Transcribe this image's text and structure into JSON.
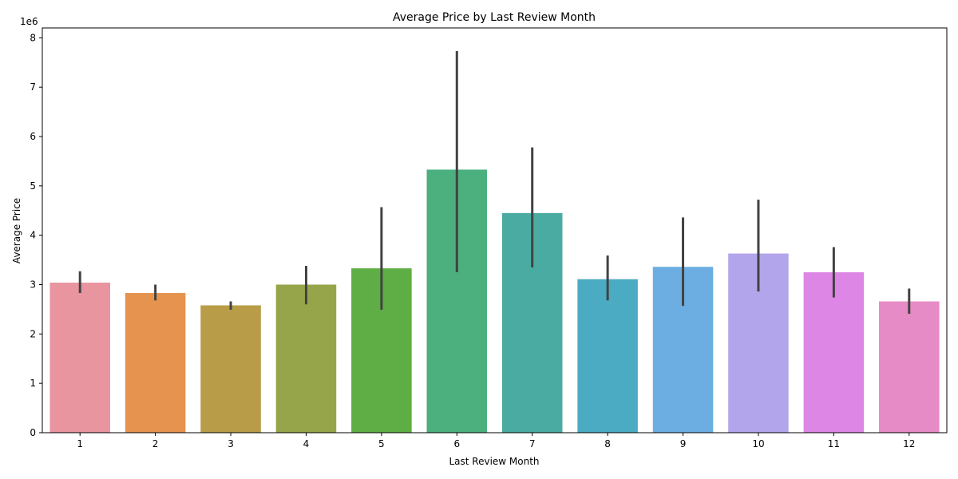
{
  "chart_data": {
    "type": "bar",
    "title": "Average Price by Last Review Month",
    "xlabel": "Last Review Month",
    "ylabel": "Average Price",
    "y_scale_label": "1e6",
    "y_scale": 1000000,
    "ylim": [
      0,
      8200000
    ],
    "yticks": [
      0,
      1,
      2,
      3,
      4,
      5,
      6,
      7,
      8
    ],
    "grid": false,
    "categories": [
      "1",
      "2",
      "3",
      "4",
      "5",
      "6",
      "7",
      "8",
      "9",
      "10",
      "11",
      "12"
    ],
    "values": [
      3040000,
      2830000,
      2580000,
      3000000,
      3330000,
      5330000,
      4450000,
      3110000,
      3360000,
      3630000,
      3250000,
      2660000
    ],
    "error_low": [
      2830000,
      2680000,
      2490000,
      2600000,
      2490000,
      3250000,
      3350000,
      2680000,
      2570000,
      2860000,
      2740000,
      2410000
    ],
    "error_high": [
      3270000,
      3000000,
      2660000,
      3380000,
      4570000,
      7730000,
      5780000,
      3590000,
      4360000,
      4720000,
      3760000,
      2920000
    ],
    "colors": [
      "#e8959f",
      "#e5934e",
      "#b99c47",
      "#97a54a",
      "#5eae45",
      "#4bb07e",
      "#4aaba2",
      "#4aabc2",
      "#6caee1",
      "#b3a5eb",
      "#dd86e5",
      "#e68bc5"
    ],
    "error_color": "#424242"
  }
}
